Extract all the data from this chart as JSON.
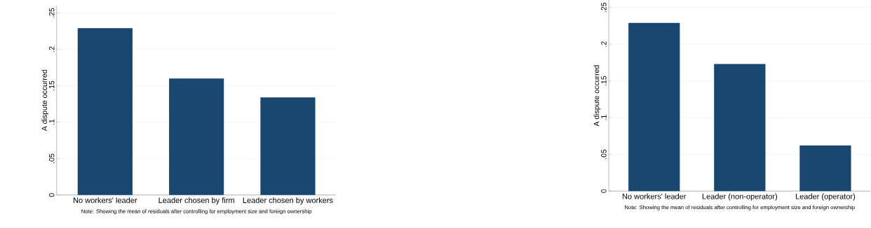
{
  "chart_data": [
    {
      "type": "bar",
      "ylabel": "A dispute occurred",
      "categories": [
        "No workers' leader",
        "Leader chosen by firm",
        "Leader chosen by workers"
      ],
      "values": [
        0.229,
        0.16,
        0.134
      ],
      "color": "#1a476f",
      "ylim": [
        0,
        0.26
      ],
      "yticks": [
        0,
        {
          "value": 0.05,
          "label": ".05"
        },
        {
          "value": 0.1,
          "label": ".1"
        },
        {
          "value": 0.15,
          "label": ".15"
        },
        {
          "value": 0.2,
          "label": ".2"
        },
        {
          "value": 0.25,
          "label": ".25"
        }
      ],
      "grid": "y",
      "annotations": [
        "Note: Showing the mean of residuals after controlling for employment size and foreign ownership"
      ]
    },
    {
      "type": "bar",
      "ylabel": "A dispute occurred",
      "categories": [
        "No workers' leader",
        "Leader (non-operator)",
        "Leader (operator)"
      ],
      "values": [
        0.229,
        0.173,
        0.062
      ],
      "color": "#1a476f",
      "ylim": [
        0,
        0.26
      ],
      "yticks": [
        0,
        {
          "value": 0.05,
          "label": ".05"
        },
        {
          "value": 0.1,
          "label": ".1"
        },
        {
          "value": 0.15,
          "label": ".15"
        },
        {
          "value": 0.2,
          "label": ".2"
        },
        {
          "value": 0.25,
          "label": ".25"
        }
      ],
      "grid": "y",
      "annotations": [
        "Note: Showing the mean of residuals after controlling for employment size and foreign ownership"
      ]
    }
  ]
}
